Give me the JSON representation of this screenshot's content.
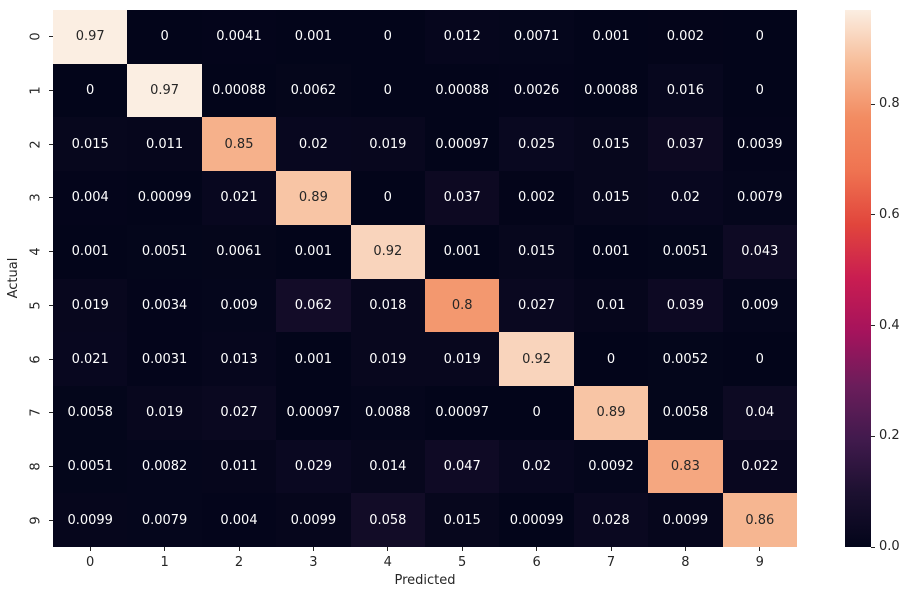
{
  "figure": {
    "background_color": "#ffffff",
    "text_color": "#262626"
  },
  "chart_data": {
    "type": "heatmap",
    "title": "",
    "xlabel": "Predicted",
    "ylabel": "Actual",
    "x_tick_labels": [
      "0",
      "1",
      "2",
      "3",
      "4",
      "5",
      "6",
      "7",
      "8",
      "9"
    ],
    "y_tick_labels": [
      "0",
      "1",
      "2",
      "3",
      "4",
      "5",
      "6",
      "7",
      "8",
      "9"
    ],
    "y_tick_rotation_deg": -90,
    "matrix": [
      [
        0.97,
        0,
        0.0041,
        0.001,
        0,
        0.012,
        0.0071,
        0.001,
        0.002,
        0
      ],
      [
        0,
        0.97,
        0.00088,
        0.0062,
        0,
        0.00088,
        0.0026,
        0.00088,
        0.016,
        0
      ],
      [
        0.015,
        0.011,
        0.85,
        0.02,
        0.019,
        0.00097,
        0.025,
        0.015,
        0.037,
        0.0039
      ],
      [
        0.004,
        0.00099,
        0.021,
        0.89,
        0,
        0.037,
        0.002,
        0.015,
        0.02,
        0.0079
      ],
      [
        0.001,
        0.0051,
        0.0061,
        0.001,
        0.92,
        0.001,
        0.015,
        0.001,
        0.0051,
        0.043
      ],
      [
        0.019,
        0.0034,
        0.009,
        0.062,
        0.018,
        0.8,
        0.027,
        0.01,
        0.039,
        0.009
      ],
      [
        0.021,
        0.0031,
        0.013,
        0.001,
        0.019,
        0.019,
        0.92,
        0,
        0.0052,
        0
      ],
      [
        0.0058,
        0.019,
        0.027,
        0.00097,
        0.0088,
        0.00097,
        0,
        0.89,
        0.0058,
        0.04
      ],
      [
        0.0051,
        0.0082,
        0.011,
        0.029,
        0.014,
        0.047,
        0.02,
        0.0092,
        0.83,
        0.022
      ],
      [
        0.0099,
        0.0079,
        0.004,
        0.0099,
        0.058,
        0.015,
        0.00099,
        0.028,
        0.0099,
        0.86
      ]
    ],
    "vmin": 0,
    "vmax": 0.97,
    "grid": false,
    "colormap": {
      "name": "rocket",
      "stops": [
        [
          0.0,
          "#03051A"
        ],
        [
          0.1,
          "#1C1030"
        ],
        [
          0.2,
          "#411A4D"
        ],
        [
          0.3,
          "#6B1D5B"
        ],
        [
          0.4,
          "#A5135C"
        ],
        [
          0.5,
          "#C91D51"
        ],
        [
          0.6,
          "#E1453C"
        ],
        [
          0.7,
          "#EF7351"
        ],
        [
          0.8,
          "#F28C62"
        ],
        [
          0.9,
          "#F7BC98"
        ],
        [
          1.0,
          "#FBEEE2"
        ]
      ]
    },
    "annotation_colors": {
      "dark": "#262626",
      "light": "#FFFFFF"
    },
    "colorbar": {
      "position": "right",
      "tick_values": [
        0.8,
        0.6,
        0.4,
        0.2,
        0.0
      ],
      "tick_labels": [
        "0.8",
        "0.6",
        "0.4",
        "0.2",
        "0.0"
      ]
    }
  }
}
